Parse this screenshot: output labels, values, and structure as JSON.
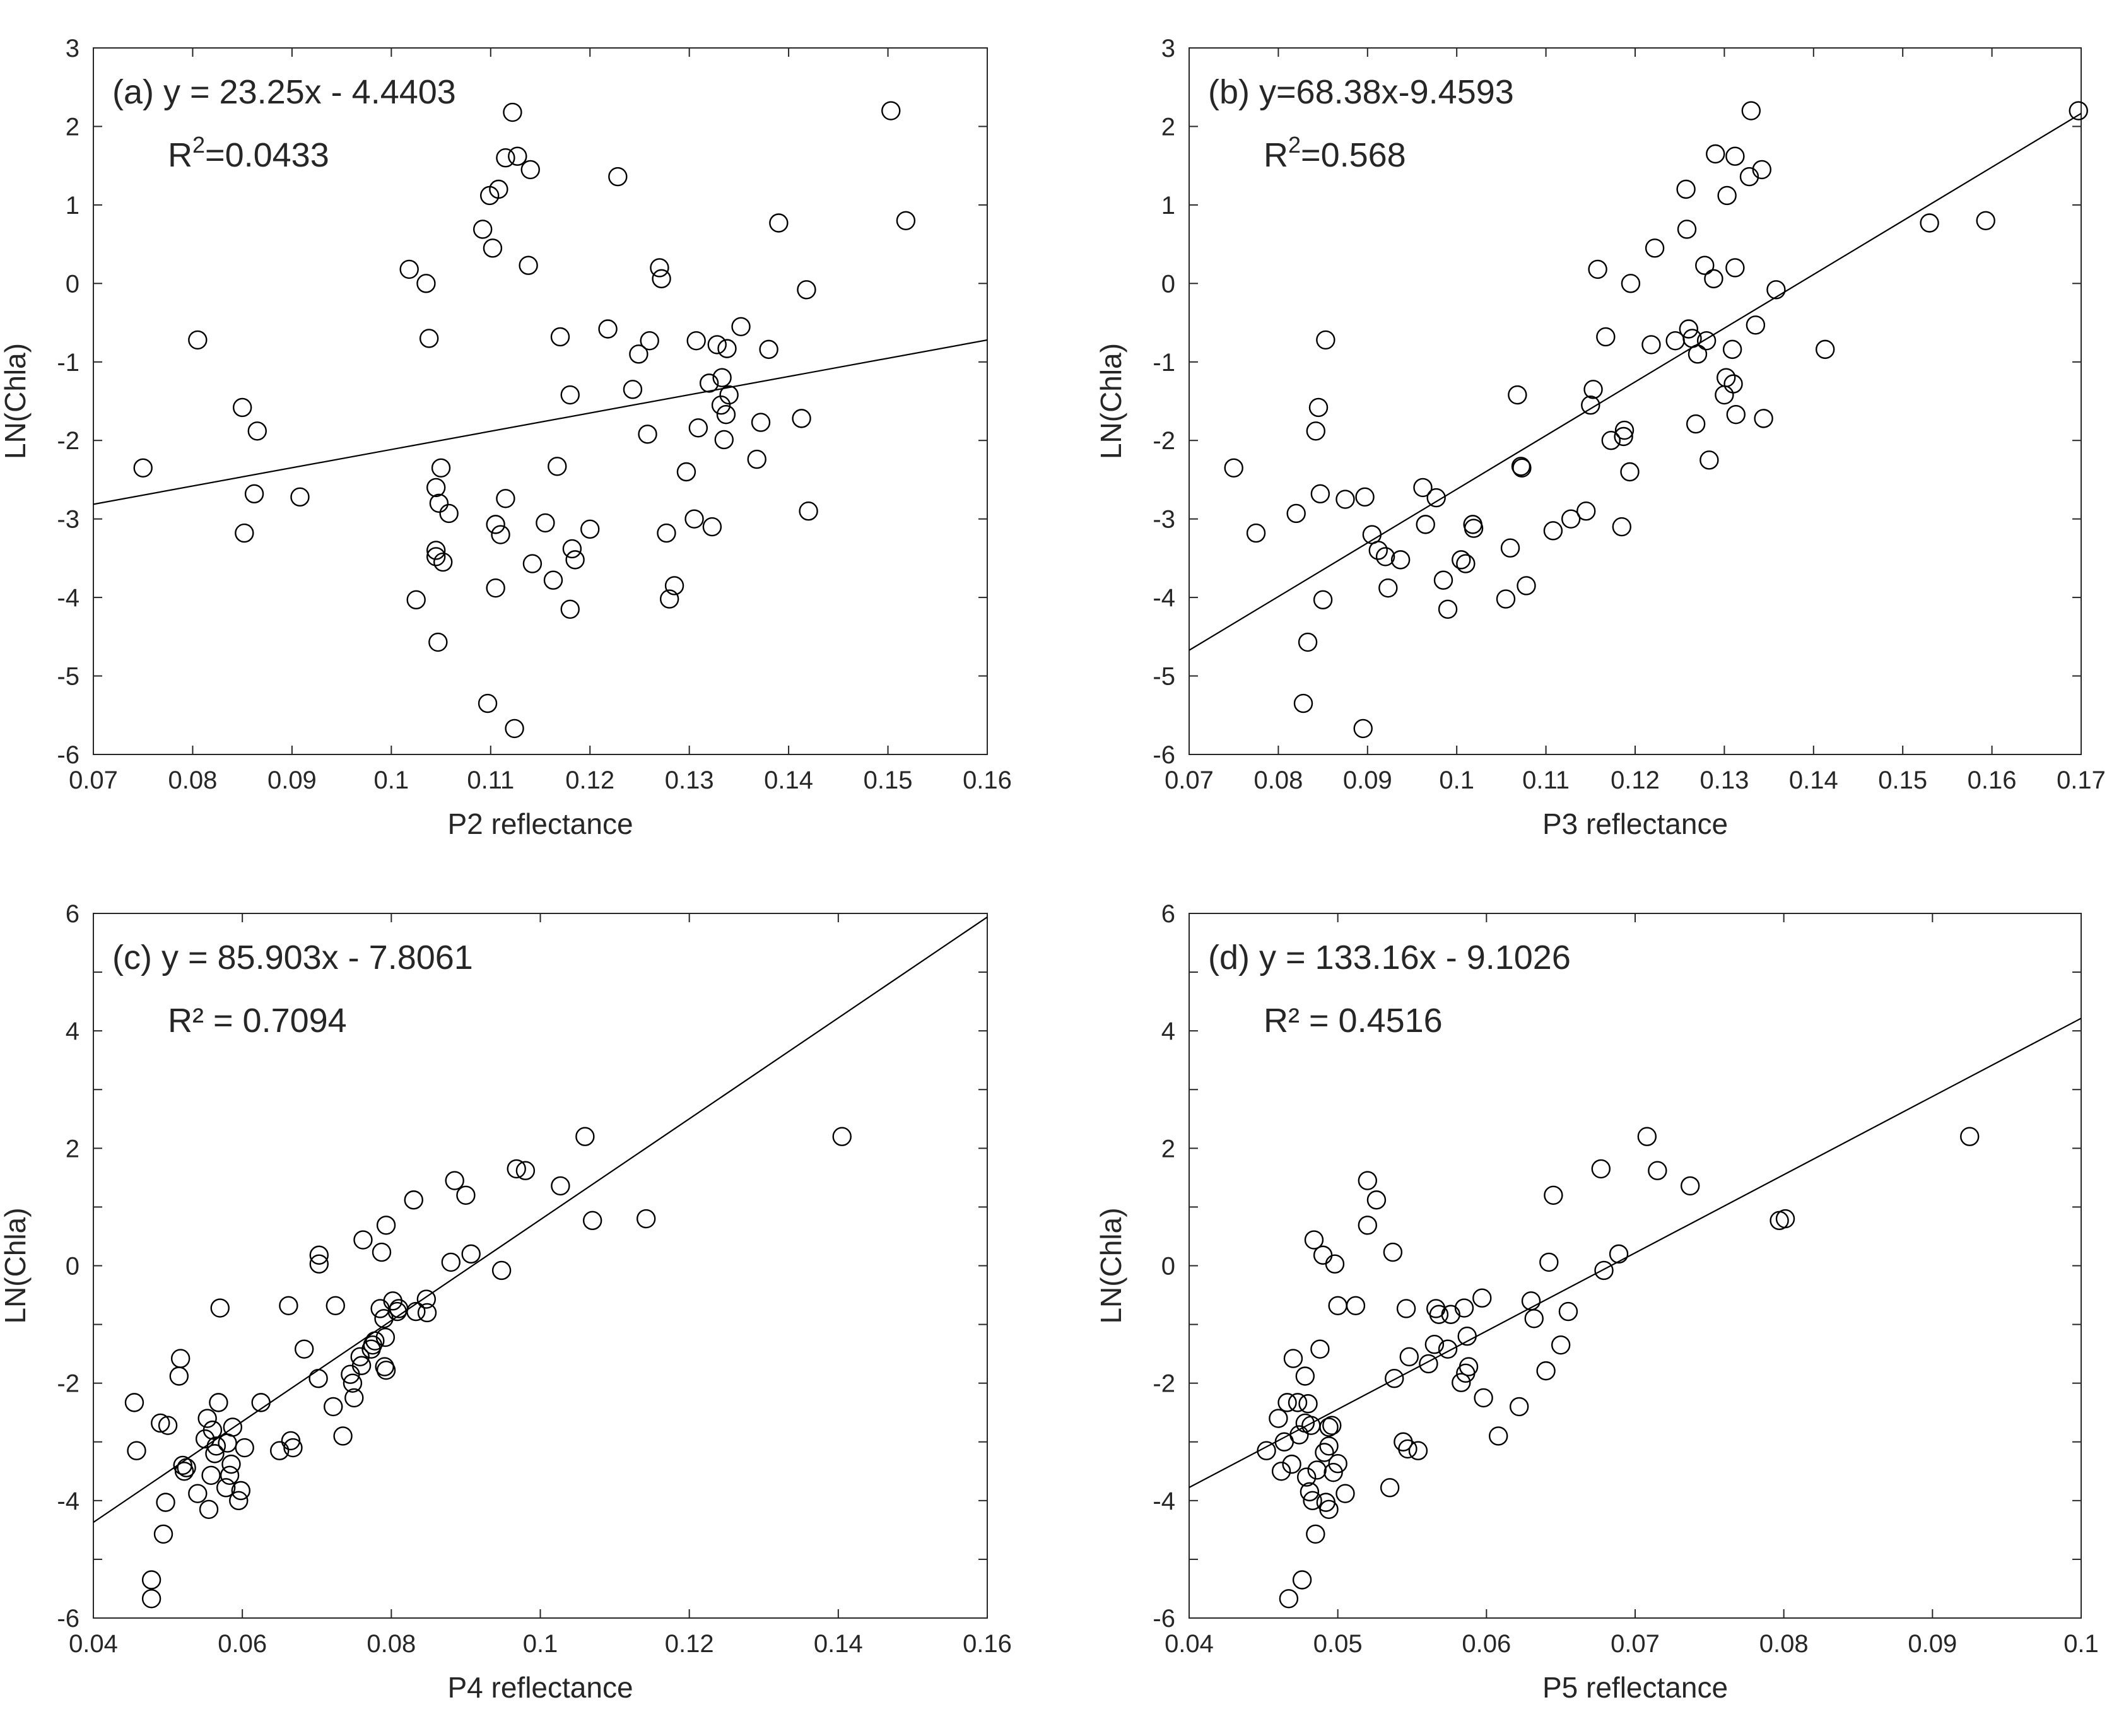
{
  "chart_data": [
    {
      "type": "scatter",
      "panel": "a",
      "xlabel": "P2 reflectance",
      "ylabel": "LN(Chla)",
      "xlim": [
        0.07,
        0.16
      ],
      "ylim": [
        -6,
        3
      ],
      "xticks": [
        "0.07",
        "0.08",
        "0.09",
        "0.1",
        "0.11",
        "0.12",
        "0.13",
        "0.14",
        "0.15",
        "0.16"
      ],
      "yticks": [
        "-6",
        "-5",
        "-4",
        "-3",
        "-2",
        "-1",
        "0",
        "1",
        "2",
        "3"
      ],
      "equation": "(a) y = 23.25x - 4.4403",
      "r2_prefix": "R",
      "r2_sup": "2",
      "r2_value": "=0.0433",
      "fit": {
        "slope": 23.25,
        "intercept": -4.4403
      },
      "points": [
        [
          0.075,
          -2.35
        ],
        [
          0.0805,
          -0.72
        ],
        [
          0.085,
          -1.58
        ],
        [
          0.0852,
          -3.18
        ],
        [
          0.0862,
          -2.68
        ],
        [
          0.0865,
          -1.88
        ],
        [
          0.0908,
          -2.72
        ],
        [
          0.1018,
          0.18
        ],
        [
          0.1025,
          -4.03
        ],
        [
          0.1035,
          0.0
        ],
        [
          0.1038,
          -0.7
        ],
        [
          0.1045,
          -2.6
        ],
        [
          0.1045,
          -3.4
        ],
        [
          0.1045,
          -3.48
        ],
        [
          0.1047,
          -4.57
        ],
        [
          0.1048,
          -2.8
        ],
        [
          0.105,
          -2.35
        ],
        [
          0.1052,
          -3.55
        ],
        [
          0.1058,
          -2.93
        ],
        [
          0.1092,
          0.69
        ],
        [
          0.1097,
          -5.35
        ],
        [
          0.1099,
          1.12
        ],
        [
          0.1102,
          0.45
        ],
        [
          0.1105,
          -3.07
        ],
        [
          0.1105,
          -3.88
        ],
        [
          0.1108,
          1.2
        ],
        [
          0.111,
          -3.2
        ],
        [
          0.1115,
          1.6
        ],
        [
          0.1115,
          -2.74
        ],
        [
          0.1122,
          2.18
        ],
        [
          0.1124,
          -5.67
        ],
        [
          0.1127,
          1.62
        ],
        [
          0.1138,
          0.23
        ],
        [
          0.114,
          1.45
        ],
        [
          0.1142,
          -3.57
        ],
        [
          0.1155,
          -3.05
        ],
        [
          0.1163,
          -3.78
        ],
        [
          0.1167,
          -2.33
        ],
        [
          0.117,
          -0.68
        ],
        [
          0.118,
          -1.42
        ],
        [
          0.118,
          -4.15
        ],
        [
          0.1182,
          -3.38
        ],
        [
          0.1185,
          -3.52
        ],
        [
          0.12,
          -3.13
        ],
        [
          0.1218,
          -0.58
        ],
        [
          0.1228,
          1.36
        ],
        [
          0.1243,
          -1.35
        ],
        [
          0.1249,
          -0.9
        ],
        [
          0.1258,
          -1.92
        ],
        [
          0.126,
          -0.73
        ],
        [
          0.127,
          0.2
        ],
        [
          0.1272,
          0.06
        ],
        [
          0.1277,
          -3.18
        ],
        [
          0.128,
          -4.02
        ],
        [
          0.1285,
          -3.85
        ],
        [
          0.1297,
          -2.4
        ],
        [
          0.1305,
          -3.0
        ],
        [
          0.1307,
          -0.73
        ],
        [
          0.1309,
          -1.84
        ],
        [
          0.132,
          -1.27
        ],
        [
          0.1323,
          -3.1
        ],
        [
          0.1328,
          -0.78
        ],
        [
          0.1332,
          -1.55
        ],
        [
          0.1333,
          -1.2
        ],
        [
          0.1335,
          -1.99
        ],
        [
          0.1337,
          -1.67
        ],
        [
          0.1338,
          -0.83
        ],
        [
          0.134,
          -1.42
        ],
        [
          0.1352,
          -0.55
        ],
        [
          0.1368,
          -2.24
        ],
        [
          0.1372,
          -1.77
        ],
        [
          0.138,
          -0.84
        ],
        [
          0.139,
          0.77
        ],
        [
          0.1413,
          -1.72
        ],
        [
          0.1418,
          -0.08
        ],
        [
          0.142,
          -2.9
        ],
        [
          0.1503,
          2.2
        ],
        [
          0.1518,
          0.8
        ]
      ]
    },
    {
      "type": "scatter",
      "panel": "b",
      "xlabel": "P3 reflectance",
      "ylabel": "LN(Chla)",
      "xlim": [
        0.07,
        0.17
      ],
      "ylim": [
        -6,
        3
      ],
      "xticks": [
        "0.07",
        "0.08",
        "0.09",
        "0.1",
        "0.11",
        "0.12",
        "0.13",
        "0.14",
        "0.15",
        "0.16",
        "0.17"
      ],
      "yticks": [
        "-6",
        "-5",
        "-4",
        "-3",
        "-2",
        "-1",
        "0",
        "1",
        "2",
        "3"
      ],
      "equation": "(b) y=68.38x-9.4593",
      "r2_prefix": "R",
      "r2_sup": "2",
      "r2_value": "=0.568",
      "fit": {
        "slope": 68.38,
        "intercept": -9.4593
      },
      "points": [
        [
          0.075,
          -2.35
        ],
        [
          0.0775,
          -3.18
        ],
        [
          0.082,
          -2.93
        ],
        [
          0.0828,
          -5.35
        ],
        [
          0.0833,
          -4.57
        ],
        [
          0.0842,
          -1.88
        ],
        [
          0.0845,
          -1.58
        ],
        [
          0.0847,
          -2.68
        ],
        [
          0.085,
          -4.03
        ],
        [
          0.0853,
          -0.72
        ],
        [
          0.0875,
          -2.75
        ],
        [
          0.0895,
          -5.67
        ],
        [
          0.0897,
          -2.72
        ],
        [
          0.0905,
          -3.2
        ],
        [
          0.0912,
          -3.4
        ],
        [
          0.092,
          -3.48
        ],
        [
          0.0923,
          -3.88
        ],
        [
          0.0937,
          -3.52
        ],
        [
          0.0962,
          -2.6
        ],
        [
          0.0965,
          -3.07
        ],
        [
          0.0977,
          -2.73
        ],
        [
          0.0985,
          -3.78
        ],
        [
          0.099,
          -4.15
        ],
        [
          0.1005,
          -3.52
        ],
        [
          0.101,
          -3.57
        ],
        [
          0.1018,
          -3.07
        ],
        [
          0.1019,
          -3.12
        ],
        [
          0.1055,
          -4.02
        ],
        [
          0.106,
          -3.37
        ],
        [
          0.1068,
          -1.42
        ],
        [
          0.1072,
          -2.33
        ],
        [
          0.1073,
          -2.35
        ],
        [
          0.1078,
          -3.85
        ],
        [
          0.1108,
          -3.15
        ],
        [
          0.1128,
          -3.0
        ],
        [
          0.1145,
          -2.9
        ],
        [
          0.115,
          -1.55
        ],
        [
          0.1153,
          -1.35
        ],
        [
          0.1158,
          0.18
        ],
        [
          0.1167,
          -0.68
        ],
        [
          0.1173,
          -2.0
        ],
        [
          0.1185,
          -3.1
        ],
        [
          0.1187,
          -1.95
        ],
        [
          0.1188,
          -1.87
        ],
        [
          0.1194,
          -2.4
        ],
        [
          0.1195,
          0.0
        ],
        [
          0.1218,
          -0.78
        ],
        [
          0.1222,
          0.45
        ],
        [
          0.1245,
          -0.73
        ],
        [
          0.1257,
          1.2
        ],
        [
          0.1258,
          0.69
        ],
        [
          0.126,
          -0.58
        ],
        [
          0.1264,
          -0.7
        ],
        [
          0.1268,
          -1.79
        ],
        [
          0.127,
          -0.9
        ],
        [
          0.1278,
          0.23
        ],
        [
          0.128,
          -0.73
        ],
        [
          0.1283,
          -2.25
        ],
        [
          0.1288,
          0.06
        ],
        [
          0.129,
          1.65
        ],
        [
          0.13,
          -1.42
        ],
        [
          0.1302,
          -1.2
        ],
        [
          0.1303,
          1.12
        ],
        [
          0.1309,
          -0.84
        ],
        [
          0.131,
          -1.28
        ],
        [
          0.1312,
          0.2
        ],
        [
          0.1312,
          1.62
        ],
        [
          0.1313,
          -1.67
        ],
        [
          0.1328,
          1.36
        ],
        [
          0.133,
          2.2
        ],
        [
          0.1335,
          -0.53
        ],
        [
          0.1342,
          1.45
        ],
        [
          0.1344,
          -1.72
        ],
        [
          0.1358,
          -0.08
        ],
        [
          0.1413,
          -0.84
        ],
        [
          0.153,
          0.77
        ],
        [
          0.1593,
          0.8
        ],
        [
          0.1697,
          2.2
        ]
      ]
    },
    {
      "type": "scatter",
      "panel": "c",
      "xlabel": "P4 reflectance",
      "ylabel": "LN(Chla)",
      "xlim": [
        0.04,
        0.16
      ],
      "ylim": [
        -6,
        6
      ],
      "xticks": [
        "0.04",
        "0.06",
        "0.08",
        "0.1",
        "0.12",
        "0.14",
        "0.16"
      ],
      "yticks": [
        "-6",
        "-4",
        "-2",
        "0",
        "2",
        "4",
        "6"
      ],
      "equation": "(c) y = 85.903x - 7.8061",
      "r2_prefix": "R² = ",
      "r2_sup": "",
      "r2_value": "0.7094",
      "fit": {
        "slope": 85.903,
        "intercept": -7.8061
      },
      "points": [
        [
          0.0455,
          -2.33
        ],
        [
          0.0458,
          -3.15
        ],
        [
          0.0478,
          -5.35
        ],
        [
          0.0478,
          -5.67
        ],
        [
          0.049,
          -2.68
        ],
        [
          0.0494,
          -4.57
        ],
        [
          0.0497,
          -4.03
        ],
        [
          0.05,
          -2.72
        ],
        [
          0.0515,
          -1.88
        ],
        [
          0.0517,
          -1.58
        ],
        [
          0.052,
          -3.4
        ],
        [
          0.0522,
          -3.5
        ],
        [
          0.0525,
          -3.44
        ],
        [
          0.054,
          -3.88
        ],
        [
          0.055,
          -2.95
        ],
        [
          0.0553,
          -2.6
        ],
        [
          0.0555,
          -4.15
        ],
        [
          0.0558,
          -3.57
        ],
        [
          0.056,
          -2.8
        ],
        [
          0.0563,
          -3.2
        ],
        [
          0.0565,
          -3.07
        ],
        [
          0.0568,
          -2.33
        ],
        [
          0.057,
          -0.72
        ],
        [
          0.0578,
          -3.78
        ],
        [
          0.058,
          -3.02
        ],
        [
          0.0583,
          -3.57
        ],
        [
          0.0585,
          -3.38
        ],
        [
          0.0587,
          -2.75
        ],
        [
          0.0595,
          -4.0
        ],
        [
          0.0598,
          -3.83
        ],
        [
          0.0603,
          -3.1
        ],
        [
          0.0625,
          -2.33
        ],
        [
          0.065,
          -3.15
        ],
        [
          0.0662,
          -0.68
        ],
        [
          0.0665,
          -2.98
        ],
        [
          0.0668,
          -3.1
        ],
        [
          0.0683,
          -1.42
        ],
        [
          0.0702,
          -1.92
        ],
        [
          0.0703,
          0.18
        ],
        [
          0.0703,
          0.03
        ],
        [
          0.0722,
          -2.4
        ],
        [
          0.0725,
          -0.68
        ],
        [
          0.0735,
          -2.9
        ],
        [
          0.0745,
          -1.85
        ],
        [
          0.0748,
          -2.0
        ],
        [
          0.075,
          -2.25
        ],
        [
          0.0758,
          -1.55
        ],
        [
          0.076,
          -1.7
        ],
        [
          0.0762,
          0.44
        ],
        [
          0.0773,
          -1.42
        ],
        [
          0.0775,
          -1.35
        ],
        [
          0.0778,
          -1.28
        ],
        [
          0.0785,
          -0.73
        ],
        [
          0.0787,
          0.23
        ],
        [
          0.079,
          -0.9
        ],
        [
          0.0791,
          -1.72
        ],
        [
          0.0792,
          -1.22
        ],
        [
          0.0793,
          0.69
        ],
        [
          0.0793,
          -1.78
        ],
        [
          0.0802,
          -0.6
        ],
        [
          0.0808,
          -0.78
        ],
        [
          0.081,
          -0.73
        ],
        [
          0.083,
          1.12
        ],
        [
          0.0833,
          -0.78
        ],
        [
          0.0847,
          -0.57
        ],
        [
          0.0848,
          -0.8
        ],
        [
          0.088,
          0.06
        ],
        [
          0.0885,
          1.45
        ],
        [
          0.09,
          1.2
        ],
        [
          0.0907,
          0.2
        ],
        [
          0.0948,
          -0.08
        ],
        [
          0.0968,
          1.65
        ],
        [
          0.098,
          1.62
        ],
        [
          0.1027,
          1.36
        ],
        [
          0.106,
          2.2
        ],
        [
          0.107,
          0.77
        ],
        [
          0.1142,
          0.8
        ],
        [
          0.1405,
          2.2
        ]
      ]
    },
    {
      "type": "scatter",
      "panel": "d",
      "xlabel": "P5 reflectance",
      "ylabel": "LN(Chla)",
      "xlim": [
        0.04,
        0.1
      ],
      "ylim": [
        -6,
        6
      ],
      "xticks": [
        "0.04",
        "0.05",
        "0.06",
        "0.07",
        "0.08",
        "0.09",
        "0.1"
      ],
      "yticks": [
        "-6",
        "-4",
        "-2",
        "0",
        "2",
        "4",
        "6"
      ],
      "equation": "(d) y = 133.16x - 9.1026",
      "r2_prefix": "R² = ",
      "r2_sup": "",
      "r2_value": "0.4516",
      "fit": {
        "slope": 133.16,
        "intercept": -9.1026
      },
      "points": [
        [
          0.0452,
          -3.15
        ],
        [
          0.046,
          -2.6
        ],
        [
          0.0462,
          -3.5
        ],
        [
          0.0464,
          -3.0
        ],
        [
          0.0466,
          -2.33
        ],
        [
          0.0467,
          -5.67
        ],
        [
          0.0469,
          -3.38
        ],
        [
          0.047,
          -1.58
        ],
        [
          0.0473,
          -2.33
        ],
        [
          0.0474,
          -2.88
        ],
        [
          0.0476,
          -5.35
        ],
        [
          0.0478,
          -2.68
        ],
        [
          0.0478,
          -1.88
        ],
        [
          0.0479,
          -3.6
        ],
        [
          0.048,
          -2.35
        ],
        [
          0.0481,
          -3.85
        ],
        [
          0.0482,
          -2.72
        ],
        [
          0.0483,
          -4.0
        ],
        [
          0.0484,
          0.44
        ],
        [
          0.0485,
          -4.57
        ],
        [
          0.0486,
          -3.48
        ],
        [
          0.0488,
          -1.42
        ],
        [
          0.049,
          0.18
        ],
        [
          0.0491,
          -3.18
        ],
        [
          0.0492,
          -4.03
        ],
        [
          0.0494,
          -3.07
        ],
        [
          0.0494,
          -2.75
        ],
        [
          0.0494,
          -4.15
        ],
        [
          0.0496,
          -2.72
        ],
        [
          0.0497,
          -3.52
        ],
        [
          0.0498,
          0.03
        ],
        [
          0.05,
          -3.37
        ],
        [
          0.05,
          -0.68
        ],
        [
          0.0505,
          -3.88
        ],
        [
          0.0512,
          -0.68
        ],
        [
          0.052,
          1.45
        ],
        [
          0.052,
          0.69
        ],
        [
          0.0526,
          1.12
        ],
        [
          0.0535,
          -3.78
        ],
        [
          0.0537,
          0.23
        ],
        [
          0.0538,
          -1.92
        ],
        [
          0.0544,
          -3.0
        ],
        [
          0.0546,
          -0.73
        ],
        [
          0.0547,
          -3.12
        ],
        [
          0.0548,
          -1.55
        ],
        [
          0.0554,
          -3.15
        ],
        [
          0.0561,
          -1.67
        ],
        [
          0.0565,
          -1.34
        ],
        [
          0.0566,
          -0.73
        ],
        [
          0.0568,
          -0.83
        ],
        [
          0.0574,
          -1.42
        ],
        [
          0.0576,
          -0.83
        ],
        [
          0.0583,
          -1.99
        ],
        [
          0.0585,
          -0.72
        ],
        [
          0.0586,
          -1.83
        ],
        [
          0.0587,
          -1.2
        ],
        [
          0.0588,
          -1.72
        ],
        [
          0.0597,
          -0.55
        ],
        [
          0.0598,
          -2.25
        ],
        [
          0.0608,
          -2.9
        ],
        [
          0.0622,
          -2.4
        ],
        [
          0.063,
          -0.6
        ],
        [
          0.0632,
          -0.9
        ],
        [
          0.064,
          -1.79
        ],
        [
          0.0642,
          0.06
        ],
        [
          0.0645,
          1.2
        ],
        [
          0.065,
          -1.35
        ],
        [
          0.0655,
          -0.78
        ],
        [
          0.0677,
          1.65
        ],
        [
          0.0679,
          -0.08
        ],
        [
          0.0689,
          0.2
        ],
        [
          0.0708,
          2.2
        ],
        [
          0.0715,
          1.62
        ],
        [
          0.0737,
          1.36
        ],
        [
          0.0797,
          0.77
        ],
        [
          0.0801,
          0.8
        ],
        [
          0.0925,
          2.2
        ]
      ]
    }
  ]
}
